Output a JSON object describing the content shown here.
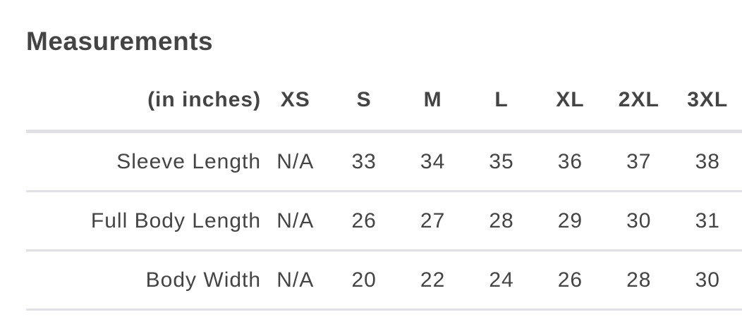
{
  "title": "Measurements",
  "table": {
    "headers": [
      "(in inches)",
      "XS",
      "S",
      "M",
      "L",
      "XL",
      "2XL",
      "3XL"
    ],
    "rows": [
      {
        "label": "Sleeve Length",
        "values": [
          "N/A",
          "33",
          "34",
          "35",
          "36",
          "37",
          "38"
        ]
      },
      {
        "label": "Full Body Length",
        "values": [
          "N/A",
          "26",
          "27",
          "28",
          "29",
          "30",
          "31"
        ]
      },
      {
        "label": "Body Width",
        "values": [
          "N/A",
          "20",
          "22",
          "24",
          "26",
          "28",
          "30"
        ]
      }
    ]
  }
}
